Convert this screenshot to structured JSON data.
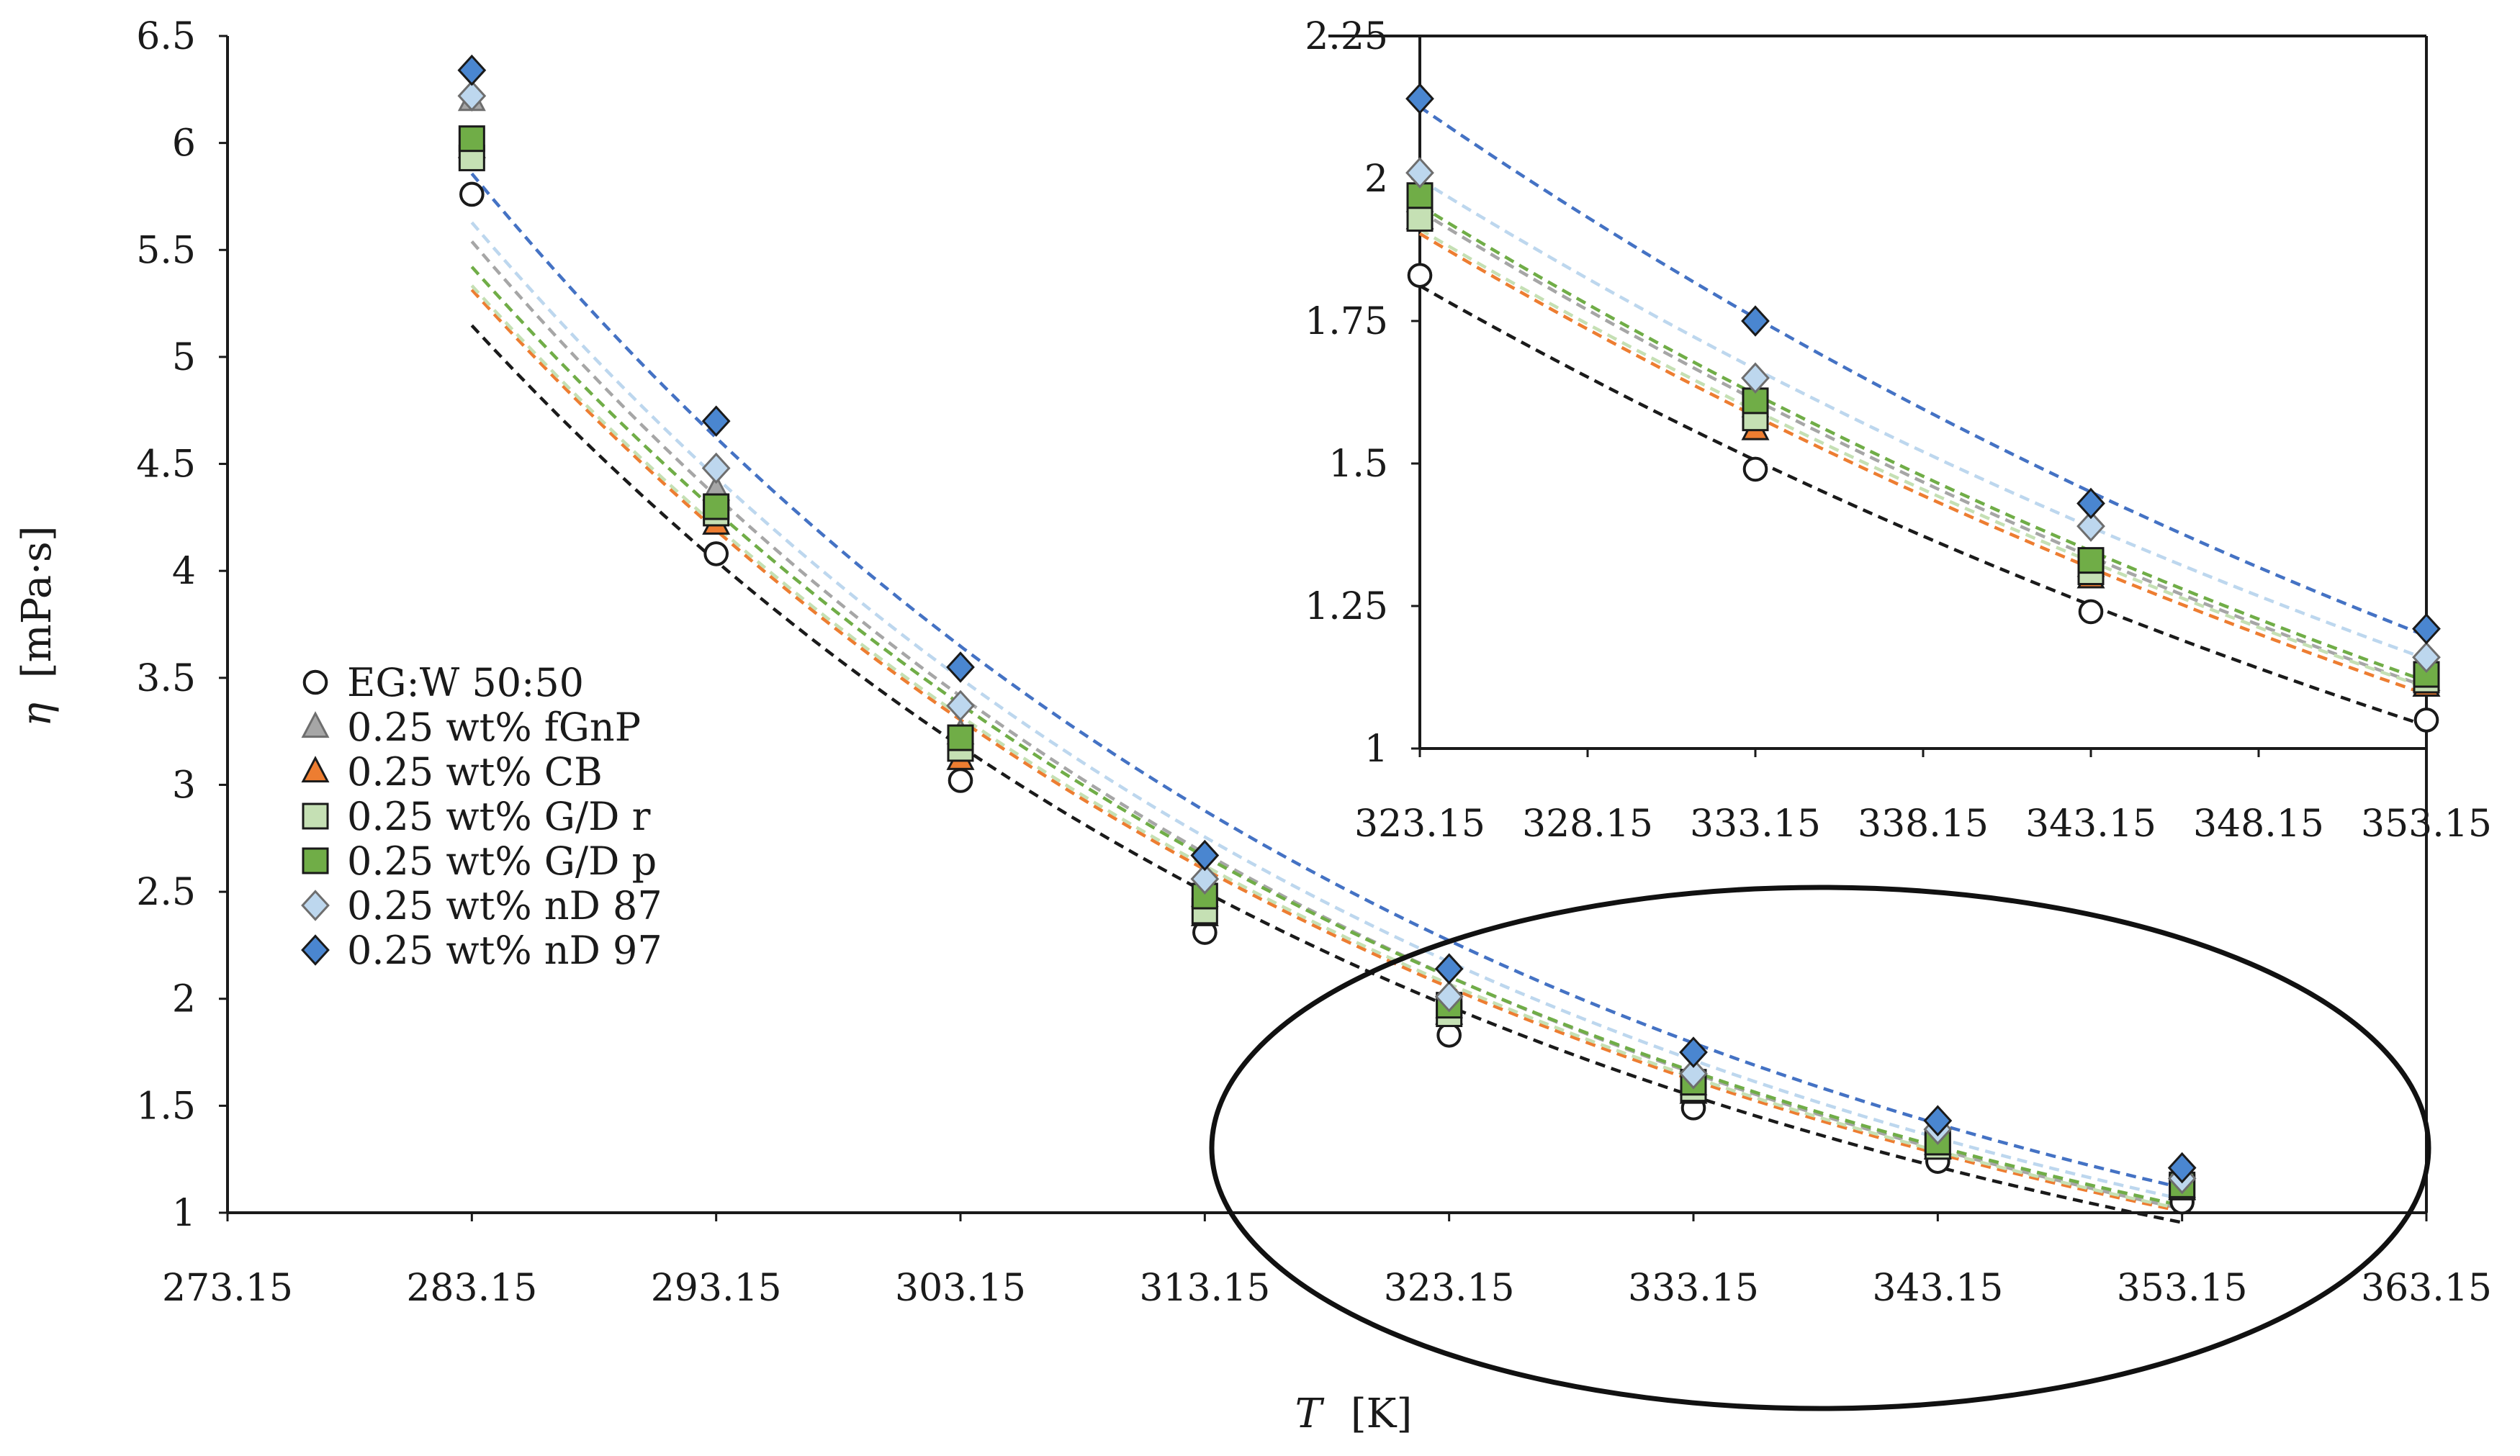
{
  "chart_data": [
    {
      "id": "main",
      "type": "scatter",
      "title": "",
      "xlabel_symbol": "T",
      "xlabel_unit": "[K]",
      "ylabel_symbol": "η",
      "ylabel_unit": "[mPa·s]",
      "xlim": [
        273.15,
        363.15
      ],
      "ylim": [
        1,
        6.5
      ],
      "x_ticks": [
        273.15,
        283.15,
        293.15,
        303.15,
        313.15,
        323.15,
        333.15,
        343.15,
        353.15,
        363.15
      ],
      "x_tick_labels": [
        "273.15",
        "283.15",
        "293.15",
        "303.15",
        "313.15",
        "323.15",
        "333.15",
        "343.15",
        "353.15",
        "363.15"
      ],
      "y_ticks": [
        1,
        1.5,
        2,
        2.5,
        3,
        3.5,
        4,
        4.5,
        5,
        5.5,
        6,
        6.5
      ],
      "y_tick_labels": [
        "1",
        "1.5",
        "2",
        "2.5",
        "3",
        "3.5",
        "4",
        "4.5",
        "5",
        "5.5",
        "6",
        "6.5"
      ],
      "grid": false,
      "legend_position": "lower-left",
      "annotation": "ellipse highlighting the 323.15–353.15 K region",
      "x": [
        283.15,
        293.15,
        303.15,
        313.15,
        323.15,
        333.15,
        343.15,
        353.15
      ],
      "series": [
        {
          "name": "EG:W 50:50",
          "marker": "circle",
          "fill": "#ffffff",
          "stroke": "#1a1a1a",
          "line_color": "#1a1a1a",
          "values": [
            5.76,
            4.08,
            3.02,
            2.31,
            1.83,
            1.49,
            1.24,
            1.05
          ]
        },
        {
          "name": "0.25 wt% fGnP",
          "marker": "triangle",
          "fill": "#a6a6a6",
          "stroke": "#6e6e6e",
          "line_color": "#a6a6a6",
          "values": [
            6.2,
            4.38,
            3.24,
            2.48,
            1.96,
            1.6,
            1.32,
            1.12
          ]
        },
        {
          "name": "0.25 wt% CB",
          "marker": "triangle",
          "fill": "#ed7d31",
          "stroke": "#1a1a1a",
          "line_color": "#ed7d31",
          "values": [
            5.98,
            4.22,
            3.12,
            2.39,
            1.93,
            1.56,
            1.3,
            1.11
          ]
        },
        {
          "name": "0.25 wt% G/D r",
          "marker": "square",
          "fill": "#c5e0b4",
          "stroke": "#1a1a1a",
          "line_color": "#c5e0b4",
          "values": [
            5.93,
            4.27,
            3.17,
            2.41,
            1.93,
            1.58,
            1.31,
            1.12
          ]
        },
        {
          "name": "0.25 wt% G/D p",
          "marker": "square",
          "fill": "#70ad47",
          "stroke": "#1a1a1a",
          "line_color": "#70ad47",
          "values": [
            6.02,
            4.3,
            3.22,
            2.48,
            1.97,
            1.61,
            1.33,
            1.13
          ]
        },
        {
          "name": "0.25 wt% nD 87",
          "marker": "diamond",
          "fill": "#bdd7ee",
          "stroke": "#6e6e6e",
          "line_color": "#bdd7ee",
          "values": [
            6.22,
            4.48,
            3.37,
            2.56,
            2.01,
            1.65,
            1.39,
            1.16
          ]
        },
        {
          "name": "0.25 wt% nD 97",
          "marker": "diamond",
          "fill": "#4a86d0",
          "stroke": "#1a1a1a",
          "line_color": "#4472c4",
          "values": [
            6.34,
            4.7,
            3.55,
            2.67,
            2.14,
            1.75,
            1.43,
            1.21
          ]
        }
      ]
    },
    {
      "id": "inset",
      "type": "scatter",
      "title": "",
      "xlim": [
        323.15,
        353.15
      ],
      "ylim": [
        1,
        2.25
      ],
      "x_ticks": [
        323.15,
        328.15,
        333.15,
        338.15,
        343.15,
        348.15,
        353.15
      ],
      "x_tick_labels": [
        "323.15",
        "328.15",
        "333.15",
        "338.15",
        "343.15",
        "348.15",
        "353.15"
      ],
      "y_ticks": [
        1,
        1.25,
        1.5,
        1.75,
        2,
        2.25
      ],
      "y_tick_labels": [
        "1",
        "1.25",
        "1.5",
        "1.75",
        "2",
        "2.25"
      ],
      "grid": false,
      "x": [
        323.15,
        333.15,
        343.15,
        353.15
      ],
      "series": [
        {
          "name": "EG:W 50:50",
          "values": [
            1.83,
            1.49,
            1.24,
            1.05
          ]
        },
        {
          "name": "0.25 wt% fGnP",
          "values": [
            1.96,
            1.6,
            1.32,
            1.12
          ]
        },
        {
          "name": "0.25 wt% CB",
          "values": [
            1.93,
            1.56,
            1.3,
            1.11
          ]
        },
        {
          "name": "0.25 wt% G/D r",
          "values": [
            1.93,
            1.58,
            1.31,
            1.12
          ]
        },
        {
          "name": "0.25 wt% G/D p",
          "values": [
            1.97,
            1.61,
            1.33,
            1.13
          ]
        },
        {
          "name": "0.25 wt% nD 87",
          "values": [
            2.01,
            1.65,
            1.39,
            1.16
          ]
        },
        {
          "name": "0.25 wt% nD 97",
          "values": [
            2.14,
            1.75,
            1.43,
            1.21
          ]
        }
      ]
    }
  ]
}
